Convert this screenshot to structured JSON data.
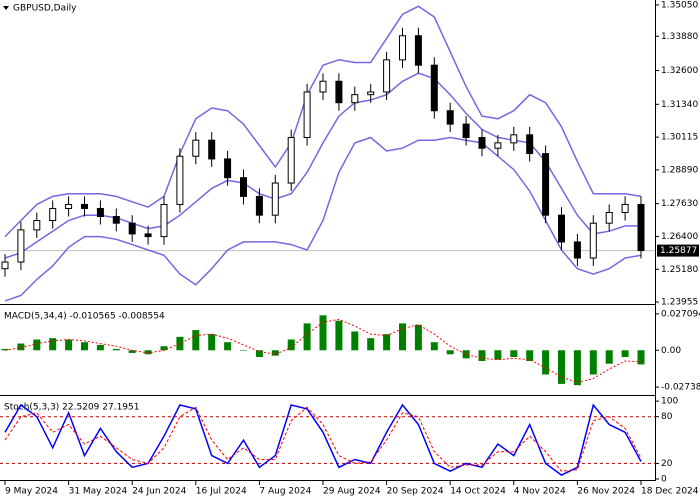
{
  "chart_data": [
    {
      "type": "candlestick",
      "title": "GBPUSD,Daily",
      "categories": [
        "9 May 2024",
        null,
        null,
        null,
        "31 May 2024",
        null,
        null,
        null,
        "24 Jun 2024",
        null,
        null,
        null,
        "16 Jul 2024",
        null,
        null,
        null,
        "7 Aug 2024",
        null,
        null,
        null,
        "29 Aug 2024",
        null,
        null,
        null,
        "20 Sep 2024",
        null,
        null,
        null,
        "14 Oct 2024",
        null,
        null,
        null,
        "4 Nov 2024",
        null,
        null,
        null,
        "26 Nov 2024",
        null,
        null,
        null,
        "18 Dec 2024"
      ],
      "open": [
        1.252,
        1.2545,
        1.2665,
        1.27,
        1.2745,
        1.276,
        1.2745,
        1.2715,
        1.269,
        1.265,
        1.264,
        1.276,
        1.294,
        1.3,
        1.293,
        1.286,
        1.279,
        1.272,
        1.284,
        1.301,
        1.318,
        1.322,
        1.314,
        1.317,
        1.318,
        1.33,
        1.339,
        1.328,
        1.311,
        1.306,
        1.301,
        1.297,
        1.299,
        1.302,
        1.295,
        1.272,
        1.262,
        1.256,
        1.269,
        1.273,
        1.276
      ],
      "high": [
        1.2575,
        1.2695,
        1.273,
        1.2775,
        1.279,
        1.279,
        1.2775,
        1.2745,
        1.272,
        1.268,
        1.279,
        1.297,
        1.303,
        1.303,
        1.296,
        1.289,
        1.282,
        1.287,
        1.304,
        1.321,
        1.325,
        1.325,
        1.32,
        1.321,
        1.333,
        1.342,
        1.342,
        1.331,
        1.314,
        1.309,
        1.304,
        1.302,
        1.305,
        1.305,
        1.298,
        1.275,
        1.265,
        1.272,
        1.276,
        1.279,
        1.279
      ],
      "low": [
        1.249,
        1.2515,
        1.2635,
        1.267,
        1.2715,
        1.2715,
        1.2685,
        1.266,
        1.262,
        1.261,
        1.261,
        1.273,
        1.291,
        1.29,
        1.283,
        1.276,
        1.269,
        1.269,
        1.281,
        1.298,
        1.315,
        1.311,
        1.311,
        1.314,
        1.315,
        1.327,
        1.325,
        1.308,
        1.303,
        1.298,
        1.294,
        1.294,
        1.296,
        1.292,
        1.269,
        1.259,
        1.253,
        1.253,
        1.266,
        1.27,
        1.2558
      ],
      "close": [
        1.2545,
        1.2665,
        1.27,
        1.2745,
        1.276,
        1.2745,
        1.2715,
        1.269,
        1.265,
        1.264,
        1.276,
        1.294,
        1.3,
        1.293,
        1.286,
        1.279,
        1.272,
        1.284,
        1.301,
        1.318,
        1.322,
        1.314,
        1.317,
        1.318,
        1.33,
        1.339,
        1.328,
        1.311,
        1.306,
        1.301,
        1.297,
        1.299,
        1.302,
        1.295,
        1.272,
        1.262,
        1.256,
        1.269,
        1.273,
        1.276,
        1.2588
      ],
      "overlays": [
        {
          "color": "#7468e0",
          "values": [
            1.264,
            1.27,
            1.276,
            1.279,
            1.28,
            1.28,
            1.28,
            1.279,
            1.277,
            1.275,
            1.279,
            1.295,
            1.308,
            1.312,
            1.311,
            1.306,
            1.298,
            1.29,
            1.299,
            1.317,
            1.328,
            1.33,
            1.329,
            1.329,
            1.338,
            1.347,
            1.35,
            1.346,
            1.333,
            1.32,
            1.309,
            1.308,
            1.311,
            1.317,
            1.314,
            1.305,
            1.292,
            1.28,
            1.28,
            1.28,
            1.279
          ]
        },
        {
          "color": "#7468e0",
          "values": [
            1.256,
            1.258,
            1.262,
            1.266,
            1.27,
            1.272,
            1.272,
            1.271,
            1.269,
            1.267,
            1.268,
            1.272,
            1.277,
            1.282,
            1.285,
            1.284,
            1.28,
            1.278,
            1.28,
            1.288,
            1.299,
            1.309,
            1.314,
            1.315,
            1.317,
            1.322,
            1.325,
            1.323,
            1.317,
            1.31,
            1.304,
            1.301,
            1.3,
            1.299,
            1.292,
            1.282,
            1.272,
            1.265,
            1.266,
            1.268,
            1.268
          ]
        },
        {
          "color": "#7468e0",
          "values": [
            1.24,
            1.242,
            1.248,
            1.253,
            1.26,
            1.264,
            1.264,
            1.263,
            1.261,
            1.259,
            1.257,
            1.25,
            1.246,
            1.252,
            1.259,
            1.262,
            1.262,
            1.262,
            1.261,
            1.259,
            1.27,
            1.288,
            1.299,
            1.301,
            1.296,
            1.297,
            1.3,
            1.3,
            1.301,
            1.3,
            1.299,
            1.294,
            1.289,
            1.281,
            1.27,
            1.259,
            1.252,
            1.25,
            1.252,
            1.256,
            1.257
          ]
        }
      ],
      "current_price": 1.25877,
      "ylim": [
        1.2392,
        1.3516
      ],
      "yticks": [
        {
          "value": 1.3505,
          "label": "1.35050"
        },
        {
          "value": 1.3388,
          "label": "1.33880"
        },
        {
          "value": 1.326,
          "label": "1.32600"
        },
        {
          "value": 1.3134,
          "label": "1.31340"
        },
        1.30115,
        {
          "value": 1.2889,
          "label": "1.28890"
        },
        {
          "value": 1.2763,
          "label": "1.27630"
        },
        {
          "value": 1.264,
          "label": "1.26400"
        },
        {
          "value": 1.2518,
          "label": "1.25180"
        },
        1.23955
      ]
    },
    {
      "type": "bar",
      "title": "MACD(5,34,4) -0.010565 -0.008554",
      "color": "#008000",
      "values": [
        0.001,
        0.005,
        0.008,
        0.009,
        0.008,
        0.006,
        0.004,
        0.001,
        -0.002,
        -0.003,
        0.003,
        0.01,
        0.015,
        0.012,
        0.006,
        0.0,
        -0.005,
        -0.004,
        0.008,
        0.02,
        0.026,
        0.022,
        0.014,
        0.009,
        0.012,
        0.02,
        0.019,
        0.006,
        -0.003,
        -0.006,
        -0.008,
        -0.007,
        -0.005,
        -0.008,
        -0.018,
        -0.025,
        -0.026,
        -0.018,
        -0.01,
        -0.005,
        -0.010565
      ],
      "signal": {
        "color": "#ff0000",
        "values": [
          0.0,
          0.002,
          0.005,
          0.007,
          0.008,
          0.007,
          0.005,
          0.003,
          0.0,
          -0.002,
          0.0,
          0.005,
          0.011,
          0.012,
          0.009,
          0.004,
          -0.001,
          -0.003,
          0.002,
          0.012,
          0.021,
          0.023,
          0.018,
          0.012,
          0.011,
          0.016,
          0.019,
          0.012,
          0.003,
          -0.003,
          -0.006,
          -0.007,
          -0.006,
          -0.007,
          -0.013,
          -0.02,
          -0.024,
          -0.021,
          -0.014,
          -0.008,
          -0.008554
        ]
      },
      "ylim": [
        -0.0318,
        0.0322
      ],
      "yticks": [
        0.027094,
        {
          "value": 0,
          "label": "0.00"
        },
        -0.027381
      ]
    },
    {
      "type": "line",
      "title": "Stoch(5,3,3) 22.5209 27.1951",
      "series": [
        {
          "color": "#0000ff",
          "values": [
            60,
            95,
            80,
            40,
            85,
            30,
            65,
            35,
            15,
            20,
            55,
            95,
            90,
            30,
            20,
            50,
            15,
            30,
            95,
            90,
            60,
            15,
            25,
            20,
            60,
            95,
            70,
            20,
            10,
            20,
            15,
            45,
            30,
            70,
            20,
            5,
            15,
            95,
            70,
            60,
            22.5209
          ]
        },
        {
          "color": "#ff0000",
          "values": [
            50,
            80,
            85,
            60,
            70,
            45,
            55,
            40,
            25,
            20,
            40,
            80,
            92,
            50,
            25,
            40,
            25,
            25,
            75,
            92,
            70,
            30,
            20,
            22,
            50,
            85,
            80,
            35,
            15,
            18,
            18,
            35,
            35,
            55,
            35,
            10,
            12,
            75,
            80,
            65,
            27.1951
          ]
        }
      ],
      "levels": [
        80,
        20
      ],
      "ylim": [
        0,
        104
      ],
      "yticks": [
        100,
        80,
        20,
        0
      ]
    }
  ]
}
